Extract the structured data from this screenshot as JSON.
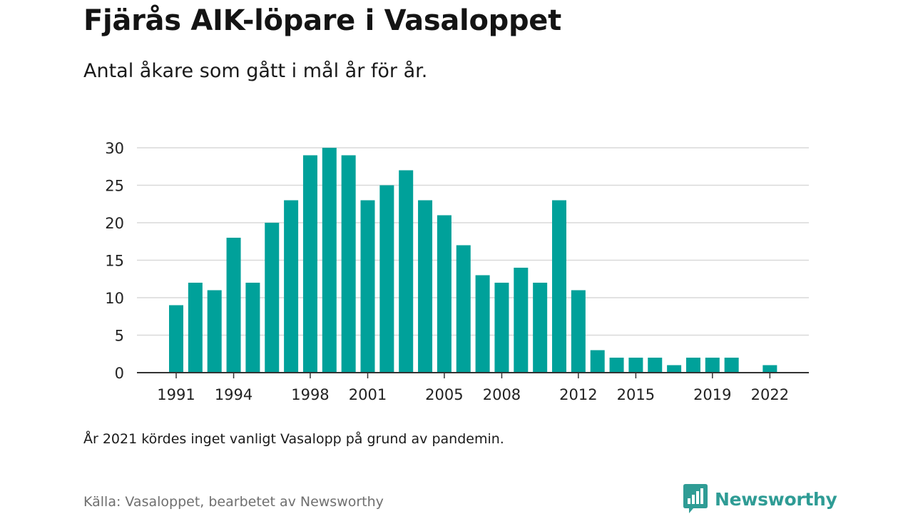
{
  "header": {
    "title": "Fjärås AIK-löpare i Vasaloppet",
    "subtitle": "Antal åkare som gått i mål år för år."
  },
  "footer": {
    "note": "År 2021 kördes inget vanligt Vasalopp på grund av pandemin.",
    "source": "Källa: Vasaloppet, bearbetet av Newsworthy",
    "brand": "Newsworthy"
  },
  "colors": {
    "bar": "#00a19a",
    "grid": "#d9d9d9",
    "axis": "#333333",
    "brand": "#2f9c95"
  },
  "chart_data": {
    "type": "bar",
    "title": "Fjärås AIK-löpare i Vasaloppet",
    "subtitle": "Antal åkare som gått i mål år för år.",
    "xlabel": "",
    "ylabel": "",
    "ylim": [
      0,
      30
    ],
    "yticks": [
      0,
      5,
      10,
      15,
      20,
      25,
      30
    ],
    "xticks": [
      1991,
      1994,
      1998,
      2001,
      2005,
      2008,
      2012,
      2015,
      2019,
      2022
    ],
    "grid": true,
    "legend": "none",
    "categories": [
      1991,
      1992,
      1993,
      1994,
      1995,
      1996,
      1997,
      1998,
      1999,
      2000,
      2001,
      2002,
      2003,
      2004,
      2005,
      2006,
      2007,
      2008,
      2009,
      2010,
      2011,
      2012,
      2013,
      2014,
      2015,
      2016,
      2017,
      2018,
      2019,
      2020,
      2021,
      2022
    ],
    "values": [
      9,
      12,
      11,
      18,
      12,
      20,
      23,
      29,
      30,
      29,
      23,
      25,
      27,
      23,
      21,
      17,
      13,
      12,
      14,
      12,
      23,
      11,
      3,
      2,
      2,
      2,
      1,
      2,
      2,
      2,
      null,
      1
    ]
  }
}
